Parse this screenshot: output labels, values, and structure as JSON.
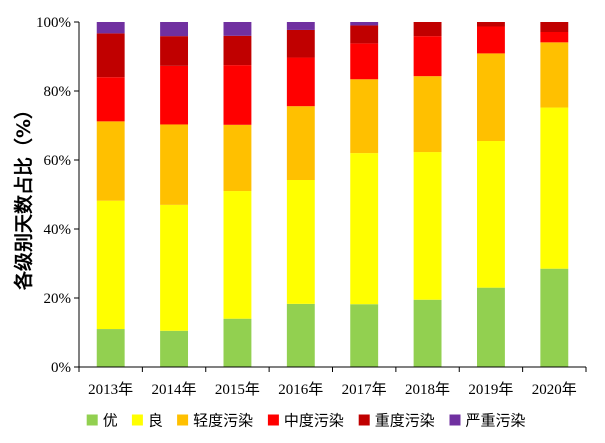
{
  "chart_data": {
    "type": "bar",
    "stacked": true,
    "categories": [
      "2013年",
      "2014年",
      "2015年",
      "2016年",
      "2017年",
      "2018年",
      "2019年",
      "2020年"
    ],
    "ylabel": "各级别天数占比（%）",
    "ylim": [
      0,
      100
    ],
    "yticks": [
      "0%",
      "20%",
      "40%",
      "60%",
      "80%",
      "100%"
    ],
    "grid": false,
    "legend_position": "bottom",
    "series": [
      {
        "name": "优",
        "color": "#92D050",
        "values": [
          11.0,
          10.5,
          14.0,
          18.3,
          18.2,
          19.5,
          23.0,
          28.5
        ]
      },
      {
        "name": "良",
        "color": "#FFFF00",
        "values": [
          37.2,
          36.5,
          37.0,
          35.9,
          43.8,
          42.8,
          42.5,
          46.7
        ]
      },
      {
        "name": "轻度污染",
        "color": "#FFC000",
        "values": [
          23.0,
          23.3,
          19.2,
          21.4,
          21.4,
          22.0,
          25.4,
          18.9
        ]
      },
      {
        "name": "中度污染",
        "color": "#FF0000",
        "values": [
          12.8,
          17.0,
          17.3,
          14.1,
          10.4,
          11.6,
          7.8,
          3.0
        ]
      },
      {
        "name": "重度污染",
        "color": "#C00000",
        "values": [
          12.7,
          8.6,
          8.5,
          8.0,
          5.2,
          4.1,
          1.3,
          2.9
        ]
      },
      {
        "name": "严重污染",
        "color": "#7030A0",
        "values": [
          3.3,
          4.1,
          4.0,
          2.3,
          1.0,
          0.0,
          0.0,
          0.0
        ]
      }
    ]
  }
}
